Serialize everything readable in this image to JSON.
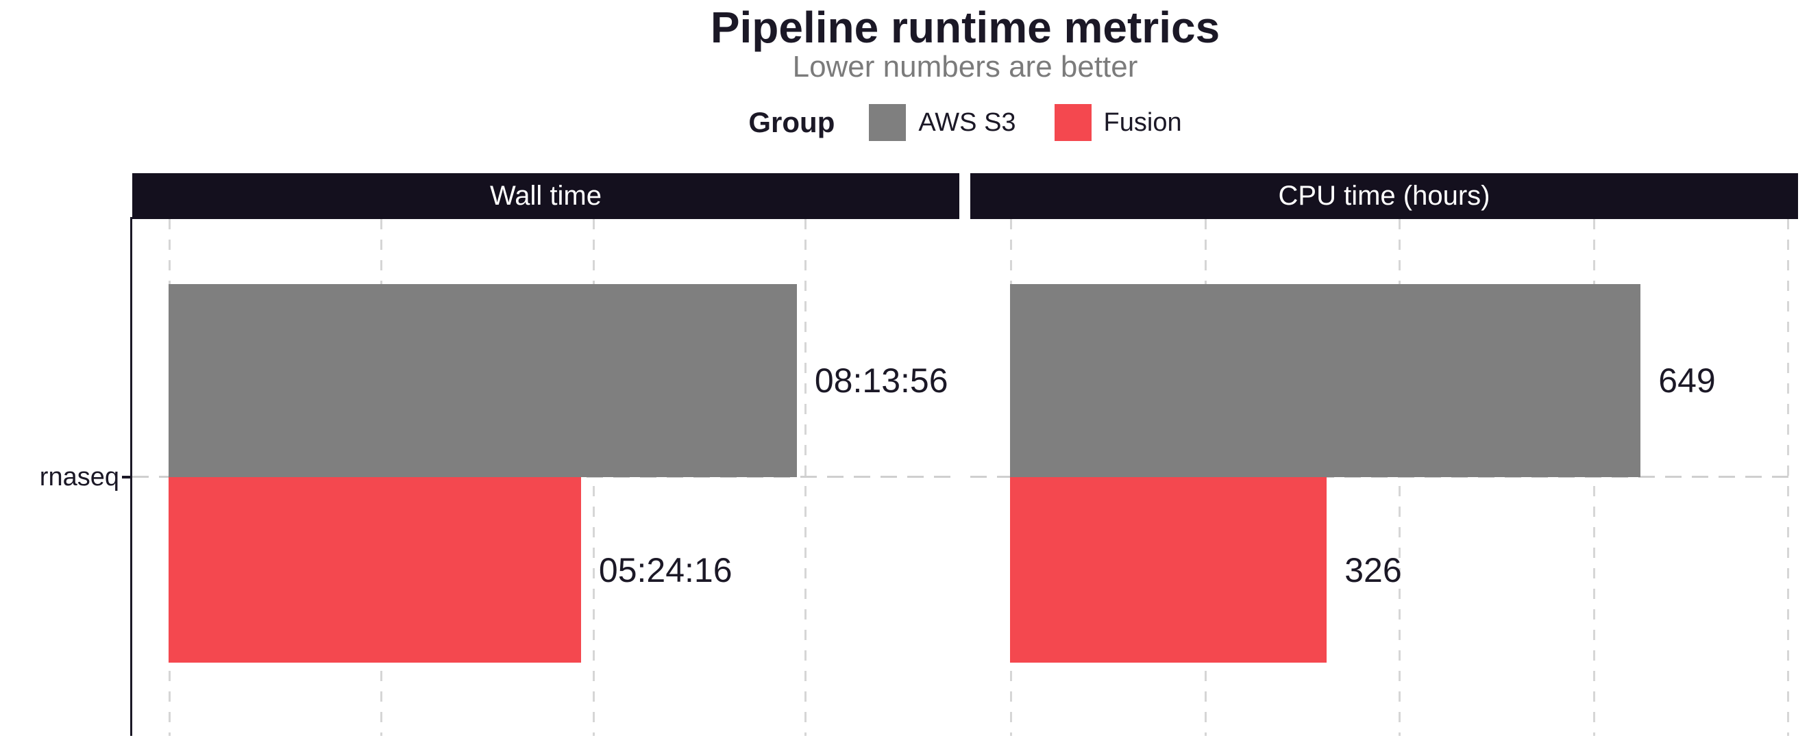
{
  "title": "Pipeline runtime metrics",
  "subtitle": "Lower numbers are better",
  "legend": {
    "title": "Group",
    "items": [
      {
        "label": "AWS S3",
        "color": "#7f7f7f"
      },
      {
        "label": "Fusion",
        "color": "#f4484f"
      }
    ]
  },
  "y_axis": {
    "category": "rnaseq"
  },
  "colors": {
    "strip_background": "#14101e",
    "strip_text": "#ffffff",
    "dark_text": "#1b1826",
    "subtitle_text": "#7b7b7b",
    "gridline": "#d6d6d6"
  },
  "chart_data": {
    "type": "bar",
    "orientation": "horizontal",
    "grid": "dashed-vertical",
    "legend_position": "top",
    "categories": [
      "rnaseq"
    ],
    "facets": [
      {
        "title": "Wall time",
        "unit": "hh:mm:ss",
        "xlim": [
          0,
          37300
        ],
        "grid_breaks": [
          0,
          10000,
          20000,
          30000
        ],
        "series": [
          {
            "name": "AWS S3",
            "values": [
              29636
            ],
            "labels": [
              "08:13:56"
            ],
            "color": "#7f7f7f"
          },
          {
            "name": "Fusion",
            "values": [
              19456
            ],
            "labels": [
              "05:24:16"
            ],
            "color": "#f4484f"
          }
        ]
      },
      {
        "title": "CPU time (hours)",
        "unit": "hours",
        "xlim": [
          0,
          811
        ],
        "grid_breaks": [
          0,
          200,
          400,
          600,
          800
        ],
        "series": [
          {
            "name": "AWS S3",
            "values": [
              649
            ],
            "labels": [
              "649"
            ],
            "color": "#7f7f7f"
          },
          {
            "name": "Fusion",
            "values": [
              326
            ],
            "labels": [
              "326"
            ],
            "color": "#f4484f"
          }
        ]
      }
    ]
  }
}
